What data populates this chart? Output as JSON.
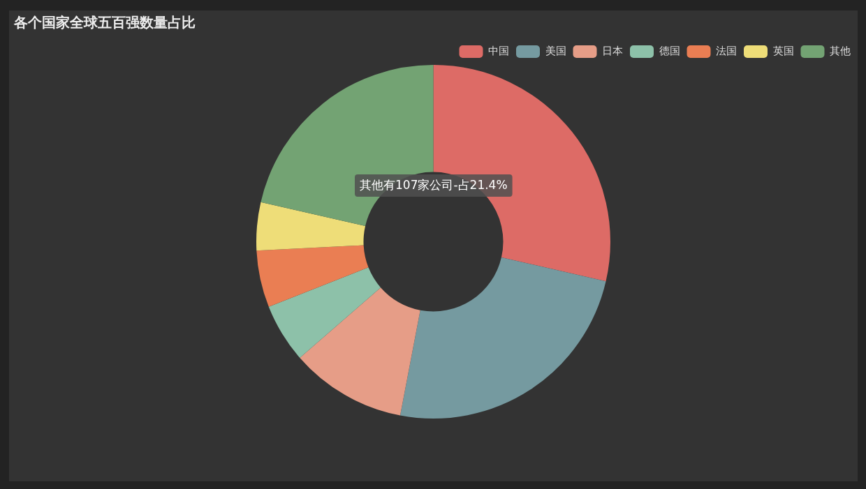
{
  "chart_data": {
    "type": "donut",
    "title": "各个国家全球五百强数量占比",
    "categories": [
      "中国",
      "美国",
      "日本",
      "德国",
      "法国",
      "英国",
      "其他"
    ],
    "values": [
      28.6,
      24.4,
      10.6,
      5.4,
      5.2,
      4.4,
      21.4
    ],
    "colors": [
      "#dd6b66",
      "#759aa0",
      "#e69d87",
      "#8dc1a9",
      "#ea7e53",
      "#eedd78",
      "#73a373"
    ],
    "legend": "top right",
    "annotations": [
      "其他有107家公司-占21.4%"
    ]
  }
}
